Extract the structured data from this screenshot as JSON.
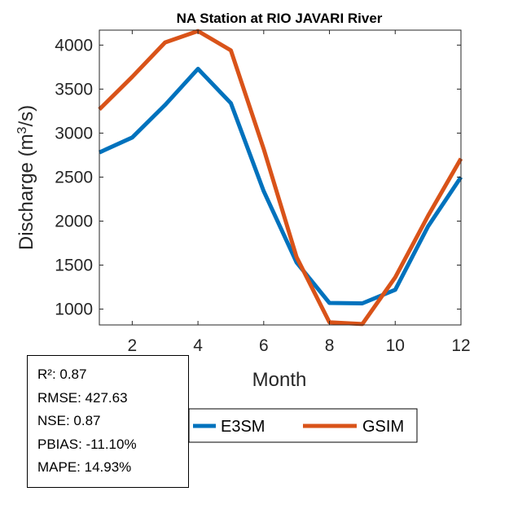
{
  "chart_data": {
    "type": "line",
    "title": "NA  Station at  RIO JAVARI  River",
    "xlabel": "Month",
    "ylabel_main": "Discharge (m",
    "ylabel_sup": "3",
    "ylabel_end": "/s)",
    "x": [
      1,
      2,
      3,
      4,
      5,
      6,
      7,
      8,
      9,
      10,
      11,
      12
    ],
    "xlim": [
      1,
      12
    ],
    "ylim": [
      820,
      4170
    ],
    "xticks": [
      2,
      4,
      6,
      8,
      10,
      12
    ],
    "yticks": [
      1000,
      1500,
      2000,
      2500,
      3000,
      3500,
      4000
    ],
    "grid": false,
    "legend_position": "bottom",
    "series": [
      {
        "name": "E3SM",
        "color": "#0072BD",
        "values": [
          2780,
          2950,
          3320,
          3730,
          3340,
          2340,
          1530,
          1070,
          1065,
          1220,
          1940,
          2500
        ]
      },
      {
        "name": "GSIM",
        "color": "#D95319",
        "values": [
          3270,
          3640,
          4030,
          4160,
          3940,
          2820,
          1590,
          850,
          830,
          1360,
          2060,
          2710
        ]
      }
    ]
  },
  "stats": [
    "R²: 0.87",
    "RMSE: 427.63",
    "NSE: 0.87",
    "PBIAS: -11.10%",
    "MAPE: 14.93%"
  ]
}
